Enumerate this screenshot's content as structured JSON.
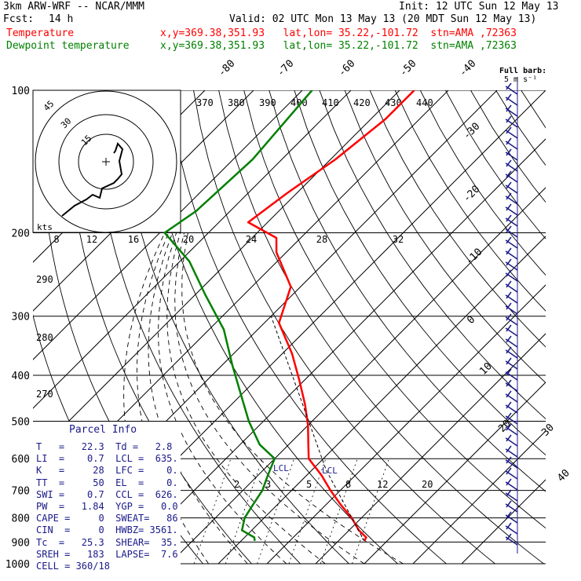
{
  "header": {
    "model": "3km ARW-WRF -- NCAR/MMM",
    "init": "Init: 12 UTC Sun 12 May 13",
    "fcst_label": "Fcst:",
    "fcst_value": "14 h",
    "valid": "Valid: 02 UTC Mon 13 May 13 (20 MDT Sun 12 May 13)",
    "temp_label": "Temperature",
    "temp_loc": "x,y=369.38,351.93   lat,lon= 35.22,-101.72  stn=AMA ,72363",
    "dew_label": "Dewpoint temperature",
    "dew_loc": "x,y=369.38,351.93   lat,lon= 35.22,-101.72  stn=AMA ,72363"
  },
  "colors": {
    "temperature": "#ff0000",
    "dewpoint": "#008000",
    "parcel_text": "#1a1a8a",
    "wind": "#1a1a8a"
  },
  "chart_data": {
    "type": "line",
    "pressure_levels": [
      100,
      200,
      300,
      400,
      500,
      600,
      700,
      800,
      900,
      1000
    ],
    "isotherm_labels": [
      "-80",
      "-70",
      "-60",
      "-50",
      "-40",
      "-30",
      "-20",
      "-10",
      "0",
      "10",
      "20",
      "30",
      "40"
    ],
    "theta_labels": [
      "370",
      "380",
      "390",
      "400",
      "410",
      "420",
      "430",
      "440"
    ],
    "lower_theta_labels": [
      "290",
      "280",
      "270"
    ],
    "mixing_ratio_labels": [
      "2",
      "3",
      "5",
      "8",
      "12",
      "20"
    ],
    "series": [
      {
        "name": "Temperature",
        "points": [
          [
            100,
            -57
          ],
          [
            115,
            -57
          ],
          [
            140,
            -59
          ],
          [
            165,
            -62
          ],
          [
            190,
            -64
          ],
          [
            205,
            -55
          ],
          [
            220,
            -52
          ],
          [
            260,
            -42
          ],
          [
            310,
            -37
          ],
          [
            360,
            -28
          ],
          [
            410,
            -21
          ],
          [
            460,
            -15
          ],
          [
            510,
            -10
          ],
          [
            560,
            -6
          ],
          [
            600,
            -3
          ],
          [
            650,
            3
          ],
          [
            700,
            8
          ],
          [
            750,
            13
          ],
          [
            800,
            18
          ],
          [
            850,
            22
          ],
          [
            880,
            25
          ],
          [
            895,
            25.3
          ]
        ]
      },
      {
        "name": "Dewpoint temperature",
        "points": [
          [
            100,
            -78
          ],
          [
            140,
            -76
          ],
          [
            180,
            -77
          ],
          [
            200,
            -79
          ],
          [
            230,
            -68
          ],
          [
            270,
            -58
          ],
          [
            320,
            -47
          ],
          [
            380,
            -38
          ],
          [
            440,
            -30
          ],
          [
            500,
            -23
          ],
          [
            560,
            -16
          ],
          [
            600,
            -10
          ],
          [
            650,
            -8
          ],
          [
            700,
            -6
          ],
          [
            750,
            -5
          ],
          [
            800,
            -4
          ],
          [
            850,
            -2
          ],
          [
            880,
            2
          ],
          [
            895,
            2.8
          ]
        ]
      }
    ],
    "parcel_labels": [
      "LCL",
      "LCL"
    ],
    "hodograph": {
      "rings_label": [
        "15",
        "30",
        "45"
      ],
      "kts_label": "kts",
      "speed_ticks": [
        "8",
        "12",
        "16",
        "20",
        "24",
        "28",
        "32"
      ]
    },
    "barb_key": {
      "label": "Full barb:",
      "value": "5 m s⁻¹"
    }
  },
  "parcel_info": {
    "title": "Parcel Info",
    "rows": [
      "T   =   22.3  Td =   2.8",
      "LI  =    0.7  LCL =  635.",
      "K   =     28  LFC =    0.",
      "TT  =     50  EL  =    0.",
      "SWI =    0.7  CCL =  626.",
      "PW  =   1.84  YGP =   0.0",
      "CAPE =     0  SWEAT=   86",
      "CIN  =     0  HWBZ= 3561.",
      "Tc  =   25.3  SHEAR=  35.",
      "SREH =   183  LAPSE=  7.6",
      "CELL = 360/18"
    ]
  }
}
